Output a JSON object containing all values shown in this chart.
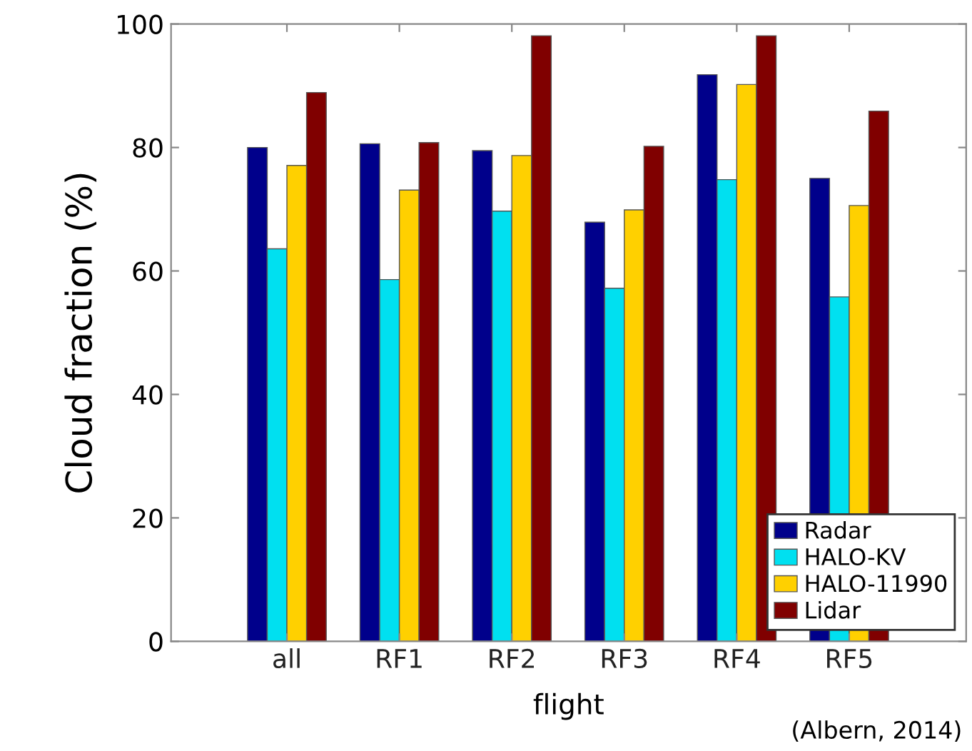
{
  "chart_data": {
    "type": "bar",
    "xlabel": "flight",
    "ylabel": "Cloud fraction (%)",
    "categories": [
      "all",
      "RF1",
      "RF2",
      "RF3",
      "RF4",
      "RF5"
    ],
    "series": [
      {
        "name": "Radar",
        "color": "#00008b",
        "values": [
          80.0,
          80.6,
          79.5,
          67.9,
          91.8,
          75.0
        ]
      },
      {
        "name": "HALO-KV",
        "color": "#00e0f0",
        "values": [
          63.6,
          58.6,
          69.7,
          57.2,
          74.8,
          55.8
        ]
      },
      {
        "name": "HALO-11990",
        "color": "#ffd000",
        "values": [
          77.1,
          73.1,
          78.7,
          69.9,
          90.2,
          70.6
        ]
      },
      {
        "name": "Lidar",
        "color": "#800000",
        "values": [
          88.9,
          80.8,
          98.1,
          80.2,
          98.1,
          85.9
        ]
      }
    ],
    "ylim": [
      0,
      100
    ],
    "yticks": [
      0,
      20,
      40,
      60,
      80,
      100
    ],
    "grid": false,
    "legend": "bottom right",
    "annotations": [
      "(Albern, 2014)"
    ]
  }
}
